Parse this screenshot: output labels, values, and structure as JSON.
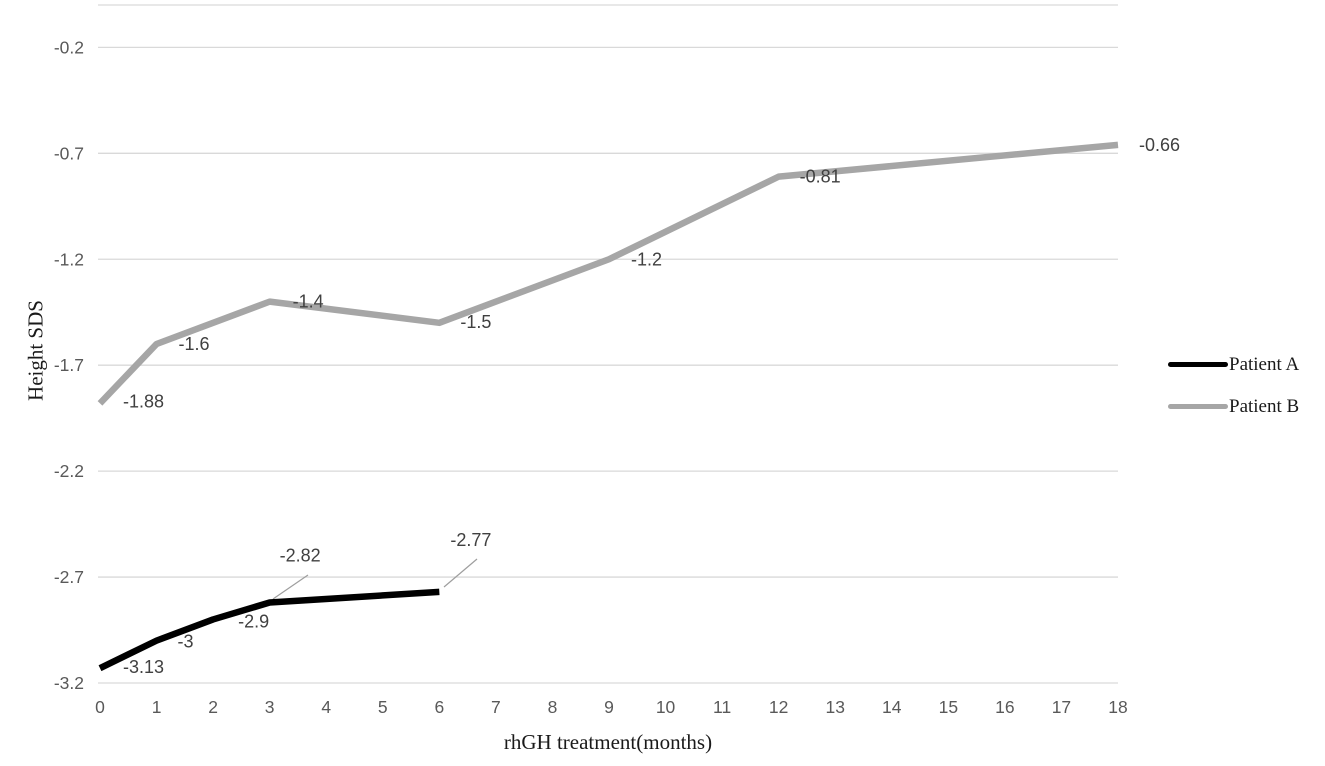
{
  "chart_data": {
    "type": "line",
    "title": "",
    "xlabel": "rhGH treatment(months)",
    "ylabel": "Height SDS",
    "xlim": [
      0,
      18
    ],
    "ylim": [
      -3.2,
      0
    ],
    "grid": true,
    "legend_position": "right-middle",
    "x_tick_labels": [
      "0",
      "1",
      "2",
      "3",
      "4",
      "5",
      "6",
      "7",
      "8",
      "9",
      "10",
      "11",
      "12",
      "13",
      "14",
      "15",
      "16",
      "17",
      "18"
    ],
    "x_tick_values": [
      0,
      1,
      2,
      3,
      4,
      5,
      6,
      7,
      8,
      9,
      10,
      11,
      12,
      13,
      14,
      15,
      16,
      17,
      18
    ],
    "y_tick_labels": [
      "-0.2",
      "-0.7",
      "-1.2",
      "-1.7",
      "-2.2",
      "-2.7",
      "-3.2"
    ],
    "y_tick_values": [
      -0.2,
      -0.7,
      -1.2,
      -1.7,
      -2.2,
      -2.7,
      -3.2
    ],
    "gridline_values": [
      0,
      -0.2,
      -0.7,
      -1.2,
      -1.7,
      -2.2,
      -2.7,
      -3.2
    ],
    "series": [
      {
        "name": "Patient A",
        "color": "#000000",
        "x": [
          0,
          1,
          2,
          3,
          6
        ],
        "y": [
          -3.13,
          -3,
          -2.9,
          -2.82,
          -2.77
        ],
        "point_labels": [
          "-3.13",
          "-3",
          "-2.9",
          "-2.82",
          "-2.77"
        ],
        "label_offsets": [
          [
            23,
            5
          ],
          [
            21,
            7
          ],
          [
            25,
            8
          ],
          [
            10,
            -41
          ],
          [
            11,
            -46
          ]
        ],
        "leader_lines": [
          null,
          null,
          null,
          [
            308,
            575,
            273,
            599
          ],
          [
            477,
            559,
            444,
            587
          ]
        ]
      },
      {
        "name": "Patient B",
        "color": "#a6a6a6",
        "x": [
          0,
          1,
          3,
          6,
          9,
          12,
          18
        ],
        "y": [
          -1.88,
          -1.6,
          -1.4,
          -1.5,
          -1.2,
          -0.81,
          -0.66
        ],
        "point_labels": [
          "-1.88",
          "-1.6",
          "-1.4",
          "-1.5",
          "-1.2",
          "-0.81",
          "-0.66"
        ],
        "label_offsets": [
          [
            23,
            4
          ],
          [
            22,
            6
          ],
          [
            23,
            6
          ],
          [
            21,
            5
          ],
          [
            22,
            6
          ],
          [
            21,
            6
          ],
          [
            21,
            6
          ]
        ],
        "leader_lines": [
          null,
          null,
          null,
          null,
          null,
          null,
          null
        ]
      }
    ],
    "styles": {
      "grid_color": "#d9d9d9",
      "tick_label_color": "#595959",
      "data_label_color": "#404040",
      "leader_line_color": "#9e9e9e",
      "series_line_width": 6.5
    }
  }
}
